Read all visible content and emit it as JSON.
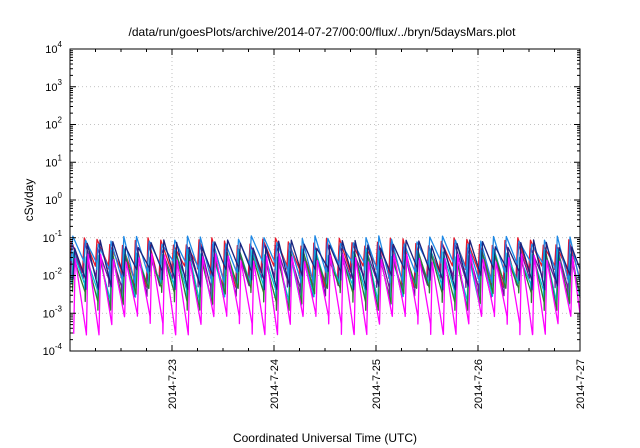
{
  "chart_data": {
    "type": "line",
    "title": "/data/run/goesPlots/archive/2014-07-27/00:00/flux/../bryn/5daysMars.plot",
    "xlabel": "Coordinated Universal Time (UTC)",
    "ylabel": "cSv/day",
    "y_scale": "log",
    "ylim": [
      0.0001,
      10000
    ],
    "y_ticks": [
      {
        "base": "10",
        "exp": "-4",
        "value": 0.0001
      },
      {
        "base": "10",
        "exp": "-3",
        "value": 0.001
      },
      {
        "base": "10",
        "exp": "-2",
        "value": 0.01
      },
      {
        "base": "10",
        "exp": "-1",
        "value": 0.1
      },
      {
        "base": "10",
        "exp": "0",
        "value": 1
      },
      {
        "base": "10",
        "exp": "1",
        "value": 10
      },
      {
        "base": "10",
        "exp": "2",
        "value": 100
      },
      {
        "base": "10",
        "exp": "3",
        "value": 1000
      },
      {
        "base": "10",
        "exp": "4",
        "value": 10000
      }
    ],
    "xlim": [
      "2014-07-22 00:00",
      "2014-07-27 00:00"
    ],
    "x_ticks": [
      "2014-7-23",
      "2014-7-24",
      "2014-7-25",
      "2014-7-26",
      "2014-7-27"
    ],
    "x_tick_days": [
      1,
      2,
      3,
      4,
      5
    ],
    "grid": true,
    "legend": "none",
    "sawtooth_period_hours": 3,
    "series": [
      {
        "color": "#e8192c",
        "peak": 0.08,
        "trough": 0.012
      },
      {
        "color": "#6a1b9a",
        "peak": 0.06,
        "trough": 0.006
      },
      {
        "color": "#1e88e5",
        "peak": 0.09,
        "trough": 0.015
      },
      {
        "color": "#00bcd4",
        "peak": 0.04,
        "trough": 0.004
      },
      {
        "color": "#2e7d32",
        "peak": 0.035,
        "trough": 0.003
      },
      {
        "color": "#1a237e",
        "peak": 0.07,
        "trough": 0.01
      },
      {
        "color": "#ff00ff",
        "peak": 0.03,
        "trough": 0.0006
      }
    ]
  }
}
